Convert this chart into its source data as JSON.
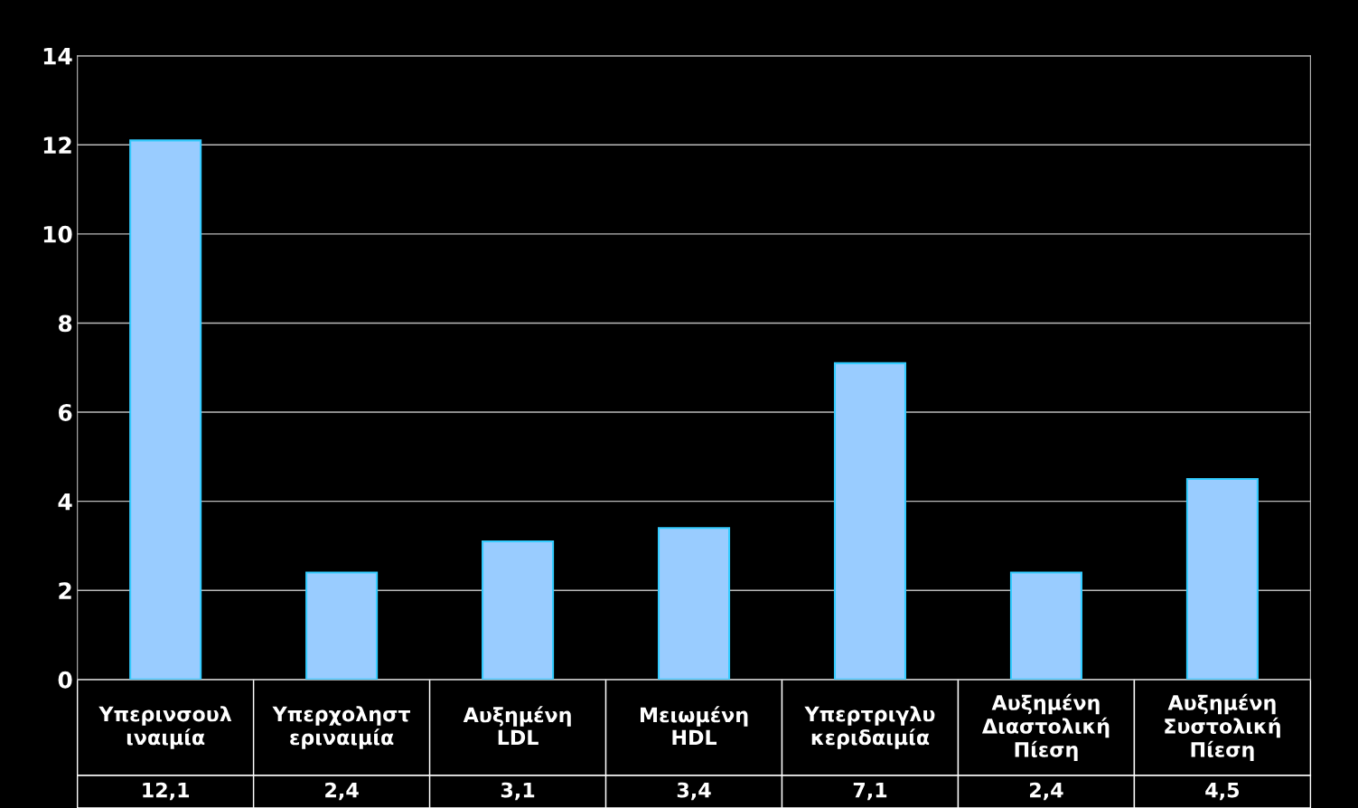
{
  "chart_data": {
    "type": "bar",
    "categories": [
      "Υπερινσουλ\nιναιμία",
      "Υπερχοληστ\nεριναιμία",
      "Αυξημένη\nLDL",
      "Μειωμένη\nHDL",
      "Υπερτριγλυ\nκεριδαιμία",
      "Αυξημένη\nΔιαστολική\nΠίεση",
      "Αυξημένη\nΣυστολική\nΠίεση"
    ],
    "values": [
      12.1,
      2.4,
      3.1,
      3.4,
      7.1,
      2.4,
      4.5
    ],
    "value_labels": [
      "12,1",
      "2,4",
      "3,1",
      "3,4",
      "7,1",
      "2,4",
      "4,5"
    ],
    "color": "#99ccff",
    "ylim": [
      0,
      14
    ],
    "yticks": [
      0,
      2,
      4,
      6,
      8,
      10,
      12,
      14
    ],
    "grid": "y",
    "legend": false
  }
}
